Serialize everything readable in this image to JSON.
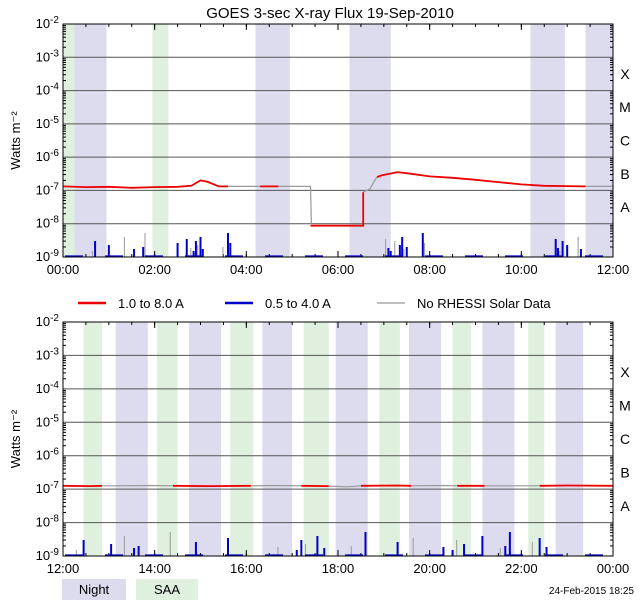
{
  "chart_data": [
    {
      "type": "line",
      "title": "GOES 3-sec X-ray Flux   19-Sep-2010",
      "ylabel": "Watts m⁻²",
      "yscale": "log",
      "ylim_exponent": [
        -9,
        -2
      ],
      "ytick_labels": [
        {
          "exp": -2,
          "base": "10",
          "sup": "-2"
        },
        {
          "exp": -3,
          "base": "10",
          "sup": "-3"
        },
        {
          "exp": -4,
          "base": "10",
          "sup": "-4"
        },
        {
          "exp": -5,
          "base": "10",
          "sup": "-5"
        },
        {
          "exp": -6,
          "base": "10",
          "sup": "-6"
        },
        {
          "exp": -7,
          "base": "10",
          "sup": "-7"
        },
        {
          "exp": -8,
          "base": "10",
          "sup": "-8"
        },
        {
          "exp": -9,
          "base": "10",
          "sup": "-9"
        }
      ],
      "flare_classes": [
        {
          "label": "X",
          "exp": -4
        },
        {
          "label": "M",
          "exp": -5
        },
        {
          "label": "C",
          "exp": -6
        },
        {
          "label": "B",
          "exp": -7
        },
        {
          "label": "A",
          "exp": -8
        }
      ],
      "xlim_hours": [
        0,
        12
      ],
      "xtick_labels": [
        "00:00",
        "02:00",
        "04:00",
        "06:00",
        "08:00",
        "10:00",
        "12:00"
      ],
      "night_intervals_hours": [
        [
          0.25,
          0.95
        ],
        [
          4.2,
          4.95
        ],
        [
          6.25,
          7.15
        ],
        [
          10.2,
          10.95
        ],
        [
          11.4,
          12.0
        ]
      ],
      "saa_intervals_hours": [
        [
          0.0,
          0.25
        ],
        [
          1.95,
          2.3
        ]
      ],
      "series": [
        {
          "name": "1.0 to 8.0 A",
          "color": "#ee0000",
          "points": [
            [
              0,
              -6.88
            ],
            [
              0.5,
              -6.9
            ],
            [
              1.0,
              -6.89
            ],
            [
              1.5,
              -6.92
            ],
            [
              2.0,
              -6.9
            ],
            [
              2.5,
              -6.89
            ],
            [
              2.8,
              -6.86
            ],
            [
              3.0,
              -6.7
            ],
            [
              3.15,
              -6.74
            ],
            [
              3.4,
              -6.88
            ],
            [
              3.6,
              -6.88
            ]
          ]
        },
        {
          "name": "1.0 to 8.0 A",
          "color": "#ee0000",
          "points": [
            [
              4.3,
              -6.88
            ],
            [
              4.7,
              -6.88
            ]
          ]
        },
        {
          "name": "1.0 to 8.0 A",
          "color": "#ee0000",
          "points": [
            [
              6.95,
              -6.55
            ],
            [
              7.3,
              -6.45
            ],
            [
              7.6,
              -6.5
            ],
            [
              8.0,
              -6.58
            ],
            [
              8.5,
              -6.62
            ],
            [
              9.0,
              -6.68
            ],
            [
              9.5,
              -6.75
            ],
            [
              10.0,
              -6.82
            ],
            [
              10.5,
              -6.86
            ],
            [
              11.0,
              -6.87
            ],
            [
              11.4,
              -6.88
            ]
          ]
        },
        {
          "name": "1.0 to 8.0 A",
          "color": "#ee0000",
          "points": [
            [
              6.85,
              -6.6
            ],
            [
              6.95,
              -6.55
            ]
          ]
        },
        {
          "name": "1.0 to 8.0 A",
          "color": "#ee0000",
          "points": [
            [
              5.4,
              -8.06
            ],
            [
              6.55,
              -8.06
            ],
            [
              6.55,
              -7.05
            ]
          ]
        },
        {
          "name": "No RHESSI Solar Data",
          "color": "#999999",
          "points": [
            [
              3.6,
              -6.88
            ],
            [
              4.3,
              -6.88
            ]
          ]
        },
        {
          "name": "No RHESSI Solar Data",
          "color": "#999999",
          "points": [
            [
              4.7,
              -6.88
            ],
            [
              5.4,
              -6.88
            ],
            [
              5.42,
              -8.0
            ]
          ]
        },
        {
          "name": "No RHESSI Solar Data",
          "color": "#999999",
          "points": [
            [
              6.55,
              -7.05
            ],
            [
              6.7,
              -6.95
            ],
            [
              6.8,
              -6.7
            ],
            [
              6.85,
              -6.6
            ]
          ]
        },
        {
          "name": "No RHESSI Solar Data",
          "color": "#999999",
          "points": [
            [
              11.4,
              -6.88
            ],
            [
              12.0,
              -6.88
            ]
          ]
        }
      ],
      "short_spikes_hours": [
        0.65,
        0.7,
        1.0,
        1.35,
        1.55,
        1.75,
        1.8,
        2.5,
        2.7,
        2.8,
        2.85,
        2.9,
        2.95,
        3.0,
        3.05,
        3.5,
        3.6,
        3.65,
        7.05,
        7.1,
        7.15,
        7.25,
        7.35,
        7.4,
        7.45,
        7.5,
        7.85,
        7.9,
        10.75,
        10.8,
        10.85,
        10.9,
        11.0,
        11.25,
        11.3
      ]
    },
    {
      "type": "line",
      "title": "",
      "ylabel": "Watts m⁻²",
      "yscale": "log",
      "ylim_exponent": [
        -9,
        -2
      ],
      "ytick_labels": [
        {
          "exp": -2,
          "base": "10",
          "sup": "-2"
        },
        {
          "exp": -3,
          "base": "10",
          "sup": "-3"
        },
        {
          "exp": -4,
          "base": "10",
          "sup": "-4"
        },
        {
          "exp": -5,
          "base": "10",
          "sup": "-5"
        },
        {
          "exp": -6,
          "base": "10",
          "sup": "-6"
        },
        {
          "exp": -7,
          "base": "10",
          "sup": "-7"
        },
        {
          "exp": -8,
          "base": "10",
          "sup": "-8"
        },
        {
          "exp": -9,
          "base": "10",
          "sup": "-9"
        }
      ],
      "flare_classes": [
        {
          "label": "X",
          "exp": -4
        },
        {
          "label": "M",
          "exp": -5
        },
        {
          "label": "C",
          "exp": -6
        },
        {
          "label": "B",
          "exp": -7
        },
        {
          "label": "A",
          "exp": -8
        }
      ],
      "xlim_hours": [
        12,
        24
      ],
      "xtick_labels": [
        "12:00",
        "14:00",
        "16:00",
        "18:00",
        "20:00",
        "22:00",
        "00:00"
      ],
      "night_intervals_hours": [
        [
          13.15,
          13.85
        ],
        [
          14.75,
          15.45
        ],
        [
          16.35,
          17.0
        ],
        [
          17.95,
          18.65
        ],
        [
          19.55,
          20.25
        ],
        [
          21.15,
          21.85
        ],
        [
          22.75,
          23.35
        ]
      ],
      "saa_intervals_hours": [
        [
          12.45,
          12.85
        ],
        [
          14.05,
          14.5
        ],
        [
          15.65,
          16.15
        ],
        [
          17.25,
          17.8
        ],
        [
          18.9,
          19.35
        ],
        [
          20.5,
          20.9
        ],
        [
          22.15,
          22.5
        ]
      ],
      "series": [
        {
          "name": "1.0 to 8.0 A",
          "color": "#ee0000",
          "points": [
            [
              12.0,
              -6.9
            ],
            [
              12.6,
              -6.91
            ],
            [
              12.85,
              -6.9
            ]
          ]
        },
        {
          "name": "No RHESSI Solar Data",
          "color": "#999999",
          "points": [
            [
              12.85,
              -6.9
            ],
            [
              13.2,
              -6.9
            ],
            [
              13.9,
              -6.89
            ],
            [
              14.4,
              -6.9
            ]
          ]
        },
        {
          "name": "1.0 to 8.0 A",
          "color": "#ee0000",
          "points": [
            [
              14.4,
              -6.9
            ],
            [
              15.2,
              -6.91
            ],
            [
              16.1,
              -6.9
            ]
          ]
        },
        {
          "name": "No RHESSI Solar Data",
          "color": "#999999",
          "points": [
            [
              16.1,
              -6.9
            ],
            [
              16.6,
              -6.89
            ],
            [
              17.2,
              -6.9
            ]
          ]
        },
        {
          "name": "1.0 to 8.0 A",
          "color": "#ee0000",
          "points": [
            [
              17.2,
              -6.9
            ],
            [
              17.8,
              -6.91
            ]
          ]
        },
        {
          "name": "No RHESSI Solar Data",
          "color": "#999999",
          "points": [
            [
              17.8,
              -6.91
            ],
            [
              18.2,
              -6.93
            ],
            [
              18.5,
              -6.9
            ]
          ]
        },
        {
          "name": "1.0 to 8.0 A",
          "color": "#ee0000",
          "points": [
            [
              18.5,
              -6.9
            ],
            [
              19.3,
              -6.89
            ],
            [
              19.6,
              -6.9
            ]
          ]
        },
        {
          "name": "No RHESSI Solar Data",
          "color": "#999999",
          "points": [
            [
              19.6,
              -6.9
            ],
            [
              20.3,
              -6.89
            ],
            [
              20.6,
              -6.9
            ]
          ]
        },
        {
          "name": "1.0 to 8.0 A",
          "color": "#ee0000",
          "points": [
            [
              20.6,
              -6.9
            ],
            [
              21.2,
              -6.9
            ]
          ]
        },
        {
          "name": "No RHESSI Solar Data",
          "color": "#999999",
          "points": [
            [
              21.2,
              -6.9
            ],
            [
              22.4,
              -6.9
            ]
          ]
        },
        {
          "name": "1.0 to 8.0 A",
          "color": "#ee0000",
          "points": [
            [
              22.4,
              -6.9
            ],
            [
              23.0,
              -6.89
            ],
            [
              24.0,
              -6.9
            ]
          ]
        }
      ],
      "short_spikes_hours": [
        12.3,
        12.45,
        13.05,
        13.35,
        13.55,
        13.65,
        14.35,
        14.9,
        15.6,
        16.7,
        17.1,
        17.2,
        17.3,
        17.55,
        17.7,
        18.3,
        18.6,
        19.3,
        19.65,
        20.3,
        20.5,
        20.6,
        20.75,
        21.15,
        21.55,
        21.65,
        21.75,
        22.25,
        22.4,
        22.55
      ]
    }
  ],
  "legend": {
    "items": [
      {
        "label": "1.0 to 8.0 A",
        "color": "#ee0000"
      },
      {
        "label": "0.5 to 4.0 A",
        "color": "#0000cc"
      },
      {
        "label": "No RHESSI Solar Data",
        "color": "#999999"
      }
    ]
  },
  "bottom_legend": {
    "night_label": "Night",
    "saa_label": "SAA",
    "night_color": "#dddcef",
    "saa_color": "#dff0df"
  },
  "footer": {
    "timestamp": "24-Feb-2015 18:25"
  }
}
